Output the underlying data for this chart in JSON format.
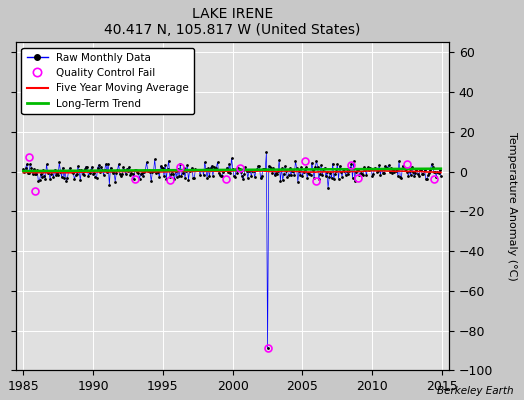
{
  "title": "LAKE IRENE",
  "subtitle": "40.417 N, 105.817 W (United States)",
  "ylabel": "Temperature Anomaly (°C)",
  "watermark": "Berkeley Earth",
  "xlim": [
    1984.5,
    2015.5
  ],
  "ylim": [
    -100,
    65
  ],
  "yticks": [
    -100,
    -80,
    -60,
    -40,
    -20,
    0,
    20,
    40,
    60
  ],
  "xticks": [
    1985,
    1990,
    1995,
    2000,
    2005,
    2010,
    2015
  ],
  "bg_color": "#c8c8c8",
  "plot_bg_color": "#e0e0e0",
  "grid_color": "#ffffff",
  "raw_line_color": "#0000ff",
  "raw_marker_color": "#000000",
  "qc_fail_color": "#ff00ff",
  "moving_avg_color": "#ff0000",
  "trend_color": "#00bb00",
  "seed": 42,
  "x_start": 1985.0,
  "x_end": 2014.917,
  "n_months": 360,
  "outlier_x": 2002.5,
  "outlier_y": -89.0,
  "qc_x": [
    1985.42,
    1985.83,
    1993.0,
    1995.5,
    1996.25,
    1999.5,
    2000.5,
    2002.5,
    2005.17,
    2006.0,
    2008.5,
    2009.0,
    2012.5,
    2014.42
  ],
  "qc_y": [
    7.5,
    -9.5,
    -3.5,
    -4.0,
    2.5,
    -3.8,
    2.0,
    -89.0,
    5.5,
    -4.5,
    3.5,
    -3.0,
    4.0,
    -3.5
  ]
}
